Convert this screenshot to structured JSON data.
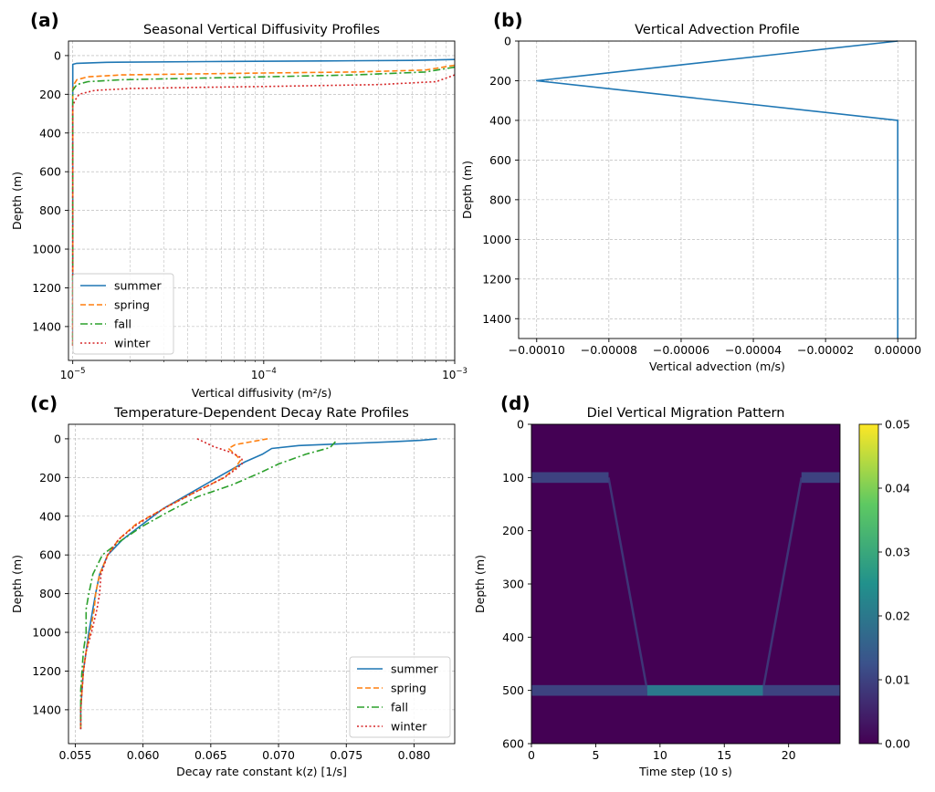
{
  "colors": {
    "summer": "#1f77b4",
    "spring": "#ff7f0e",
    "fall": "#2ca02c",
    "winter": "#d62728",
    "grid": "#b0b0b0"
  },
  "chart_data": [
    {
      "panel_label": "(a)",
      "type": "line",
      "title": "Seasonal Vertical Diffusivity Profiles",
      "xlabel": "Vertical diffusivity (m²/s)",
      "ylabel": "Depth (m)",
      "xscale": "log",
      "xlim": [
        9.5e-06,
        0.001
      ],
      "ylim": [
        1575,
        -75
      ],
      "y_inverted": true,
      "xticks": [
        {
          "value": 1e-05,
          "base": "10",
          "exp": "−5"
        },
        {
          "value": 0.0001,
          "base": "10",
          "exp": "−4"
        },
        {
          "value": 0.001,
          "base": "10",
          "exp": "−3"
        }
      ],
      "yticks": [
        0,
        200,
        400,
        600,
        800,
        1000,
        1200,
        1400
      ],
      "grid": true,
      "legend_position": "lower-left",
      "series": [
        {
          "name": "summer",
          "style": "solid",
          "points": [
            [
              0.001,
              20
            ],
            [
              0.0006,
              25
            ],
            [
              0.0002,
              28
            ],
            [
              5e-05,
              31
            ],
            [
              1.5e-05,
              35
            ],
            [
              1.05e-05,
              40
            ],
            [
              1e-05,
              45
            ],
            [
              1e-05,
              1500
            ]
          ]
        },
        {
          "name": "spring",
          "style": "dashed",
          "points": [
            [
              0.001,
              50
            ],
            [
              0.0007,
              75
            ],
            [
              0.0003,
              85
            ],
            [
              0.0001,
              90
            ],
            [
              4e-05,
              95
            ],
            [
              1.8e-05,
              100
            ],
            [
              1.2e-05,
              110
            ],
            [
              1.05e-05,
              125
            ],
            [
              1.02e-05,
              145
            ],
            [
              1e-05,
              180
            ],
            [
              1e-05,
              1500
            ]
          ]
        },
        {
          "name": "fall",
          "style": "dashdot",
          "points": [
            [
              0.001,
              60
            ],
            [
              0.0007,
              85
            ],
            [
              0.0003,
              100
            ],
            [
              0.0001,
              110
            ],
            [
              4e-05,
              118
            ],
            [
              1.8e-05,
              125
            ],
            [
              1.2e-05,
              135
            ],
            [
              1.05e-05,
              150
            ],
            [
              1e-05,
              180
            ],
            [
              1e-05,
              1500
            ]
          ]
        },
        {
          "name": "winter",
          "style": "dotted",
          "points": [
            [
              0.001,
              100
            ],
            [
              0.0008,
              135
            ],
            [
              0.0004,
              150
            ],
            [
              0.0001,
              160
            ],
            [
              4e-05,
              165
            ],
            [
              2e-05,
              170
            ],
            [
              1.3e-05,
              180
            ],
            [
              1.08e-05,
              200
            ],
            [
              1.03e-05,
              230
            ],
            [
              1e-05,
              260
            ],
            [
              1e-05,
              1500
            ]
          ]
        }
      ]
    },
    {
      "panel_label": "(b)",
      "type": "line",
      "title": "Vertical Advection Profile",
      "xlabel": "Vertical advection (m/s)",
      "ylabel": "Depth (m)",
      "xlim": [
        -0.000105,
        5e-06
      ],
      "ylim": [
        1500,
        0
      ],
      "y_inverted": true,
      "xticks": [
        {
          "value": -0.0001,
          "label": "−0.00010"
        },
        {
          "value": -8e-05,
          "label": "−0.00008"
        },
        {
          "value": -6e-05,
          "label": "−0.00006"
        },
        {
          "value": -4e-05,
          "label": "−0.00004"
        },
        {
          "value": -2e-05,
          "label": "−0.00002"
        },
        {
          "value": 0,
          "label": "0.00000"
        }
      ],
      "yticks": [
        0,
        200,
        400,
        600,
        800,
        1000,
        1200,
        1400
      ],
      "grid": true,
      "series": [
        {
          "style": "solid",
          "color": "#1f77b4",
          "points": [
            [
              0,
              0
            ],
            [
              -0.0001,
              200
            ],
            [
              0,
              400
            ],
            [
              0,
              1500
            ]
          ]
        }
      ]
    },
    {
      "panel_label": "(c)",
      "type": "line",
      "title": "Temperature-Dependent Decay Rate Profiles",
      "xlabel": "Decay rate constant k(z) [1/s]",
      "ylabel": "Depth (m)",
      "xlim": [
        0.0545,
        0.083
      ],
      "ylim": [
        1575,
        -75
      ],
      "y_inverted": true,
      "xticks": [
        {
          "value": 0.055,
          "label": "0.055"
        },
        {
          "value": 0.06,
          "label": "0.060"
        },
        {
          "value": 0.065,
          "label": "0.065"
        },
        {
          "value": 0.07,
          "label": "0.070"
        },
        {
          "value": 0.075,
          "label": "0.075"
        },
        {
          "value": 0.08,
          "label": "0.080"
        }
      ],
      "yticks": [
        0,
        200,
        400,
        600,
        800,
        1000,
        1200,
        1400
      ],
      "grid": true,
      "legend_position": "lower-right",
      "series": [
        {
          "name": "summer",
          "style": "solid",
          "points": [
            [
              0.0817,
              0
            ],
            [
              0.0805,
              8
            ],
            [
              0.0785,
              15
            ],
            [
              0.075,
              25
            ],
            [
              0.0715,
              35
            ],
            [
              0.0695,
              50
            ],
            [
              0.0688,
              80
            ],
            [
              0.0675,
              120
            ],
            [
              0.066,
              180
            ],
            [
              0.064,
              260
            ],
            [
              0.0615,
              360
            ],
            [
              0.0598,
              450
            ],
            [
              0.0585,
              520
            ],
            [
              0.0574,
              600
            ],
            [
              0.0568,
              700
            ],
            [
              0.0565,
              800
            ],
            [
              0.0563,
              880
            ],
            [
              0.056,
              1000
            ],
            [
              0.0558,
              1100
            ],
            [
              0.0556,
              1200
            ],
            [
              0.0555,
              1300
            ],
            [
              0.0554,
              1400
            ],
            [
              0.0554,
              1500
            ]
          ]
        },
        {
          "name": "spring",
          "style": "dashed",
          "points": [
            [
              0.0692,
              0
            ],
            [
              0.068,
              15
            ],
            [
              0.0668,
              30
            ],
            [
              0.0663,
              50
            ],
            [
              0.0668,
              80
            ],
            [
              0.0672,
              110
            ],
            [
              0.0668,
              150
            ],
            [
              0.066,
              200
            ],
            [
              0.064,
              270
            ],
            [
              0.0618,
              350
            ],
            [
              0.0595,
              440
            ],
            [
              0.0582,
              520
            ],
            [
              0.0574,
              600
            ],
            [
              0.0568,
              700
            ],
            [
              0.0565,
              800
            ],
            [
              0.0564,
              880
            ],
            [
              0.0561,
              1000
            ],
            [
              0.0558,
              1100
            ],
            [
              0.0556,
              1200
            ],
            [
              0.0555,
              1300
            ],
            [
              0.0554,
              1400
            ],
            [
              0.0554,
              1500
            ]
          ]
        },
        {
          "name": "fall",
          "style": "dashdot",
          "points": [
            [
              0.0742,
              15
            ],
            [
              0.074,
              30
            ],
            [
              0.0738,
              45
            ],
            [
              0.072,
              80
            ],
            [
              0.07,
              130
            ],
            [
              0.0685,
              180
            ],
            [
              0.0665,
              240
            ],
            [
              0.064,
              300
            ],
            [
              0.0618,
              380
            ],
            [
              0.06,
              450
            ],
            [
              0.0583,
              530
            ],
            [
              0.057,
              600
            ],
            [
              0.0563,
              700
            ],
            [
              0.056,
              800
            ],
            [
              0.0558,
              880
            ],
            [
              0.0558,
              1000
            ],
            [
              0.0556,
              1100
            ],
            [
              0.0555,
              1200
            ],
            [
              0.0554,
              1300
            ],
            [
              0.0554,
              1400
            ],
            [
              0.0554,
              1500
            ]
          ]
        },
        {
          "name": "winter",
          "style": "dotted",
          "points": [
            [
              0.064,
              0
            ],
            [
              0.0652,
              40
            ],
            [
              0.0665,
              70
            ],
            [
              0.0673,
              100
            ],
            [
              0.0673,
              130
            ],
            [
              0.0668,
              160
            ],
            [
              0.066,
              200
            ],
            [
              0.064,
              270
            ],
            [
              0.0618,
              350
            ],
            [
              0.0596,
              440
            ],
            [
              0.0582,
              520
            ],
            [
              0.0574,
              600
            ],
            [
              0.0569,
              700
            ],
            [
              0.0568,
              800
            ],
            [
              0.0566,
              880
            ],
            [
              0.0562,
              1000
            ],
            [
              0.0558,
              1100
            ],
            [
              0.0556,
              1200
            ],
            [
              0.0555,
              1300
            ],
            [
              0.0554,
              1400
            ],
            [
              0.0554,
              1500
            ]
          ]
        }
      ]
    },
    {
      "panel_label": "(d)",
      "type": "heatmap",
      "title": "Diel Vertical Migration Pattern",
      "xlabel": "Time step (10 s)",
      "ylabel": "Depth (m)",
      "xlim": [
        0,
        24
      ],
      "ylim": [
        600,
        0
      ],
      "y_inverted": true,
      "xticks": [
        0,
        5,
        10,
        15,
        20
      ],
      "yticks": [
        0,
        100,
        200,
        300,
        400,
        500,
        600
      ],
      "grid": false,
      "colormap": "viridis",
      "vmin": 0,
      "vmax": 0.05,
      "background_value": 0,
      "colorbar_ticks": [
        {
          "value": 0,
          "label": "0.00"
        },
        {
          "value": 0.01,
          "label": "0.01"
        },
        {
          "value": 0.02,
          "label": "0.02"
        },
        {
          "value": 0.03,
          "label": "0.03"
        },
        {
          "value": 0.04,
          "label": "0.04"
        },
        {
          "value": 0.05,
          "label": "0.05"
        }
      ],
      "cells": [
        {
          "x0": 0,
          "x1": 6,
          "y0": 90,
          "y1": 110,
          "value": 0.01
        },
        {
          "x0": 21,
          "x1": 24,
          "y0": 90,
          "y1": 110,
          "value": 0.01
        },
        {
          "x0": 0,
          "x1": 9,
          "y0": 490,
          "y1": 510,
          "value": 0.01
        },
        {
          "x0": 9,
          "x1": 18,
          "y0": 490,
          "y1": 510,
          "value": 0.02
        },
        {
          "x0": 18,
          "x1": 24,
          "y0": 490,
          "y1": 510,
          "value": 0.01
        }
      ],
      "trails": [
        {
          "points": [
            [
              6,
              100
            ],
            [
              9,
              500
            ]
          ],
          "value": 0.008
        },
        {
          "points": [
            [
              18,
              500
            ],
            [
              21,
              100
            ]
          ],
          "value": 0.008
        }
      ]
    }
  ]
}
